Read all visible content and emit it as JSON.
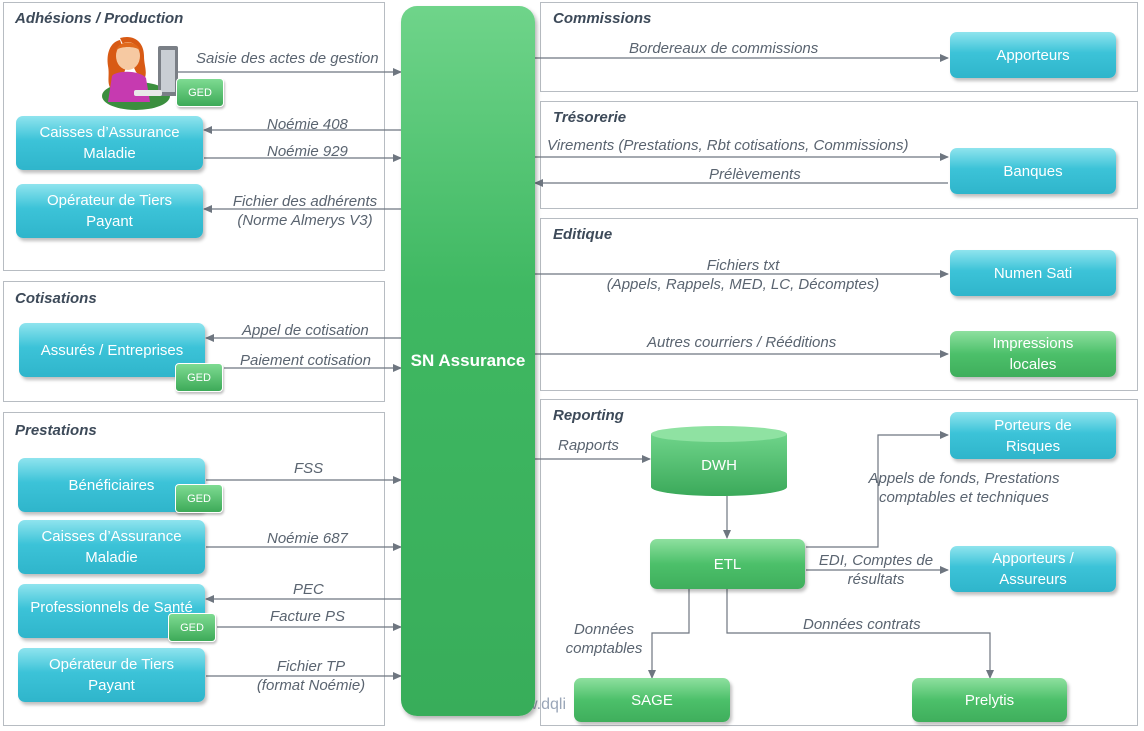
{
  "central": {
    "label": "SN Assurance"
  },
  "panels": {
    "adhesions": {
      "title": "Adhésions / Production"
    },
    "cotisations": {
      "title": "Cotisations"
    },
    "prestations": {
      "title": "Prestations"
    },
    "commissions": {
      "title": "Commissions"
    },
    "tresorerie": {
      "title": "Trésorerie"
    },
    "editique": {
      "title": "Editique"
    },
    "reporting": {
      "title": "Reporting"
    }
  },
  "boxes": {
    "caisses1": "Caisses d’Assurance Maladie",
    "tiers1": "Opérateur de Tiers Payant",
    "assures": "Assurés / Entreprises",
    "beneficiaires": "Bénéficiaires",
    "caisses2": "Caisses d’Assurance Maladie",
    "pros": "Professionnels de Santé",
    "tiers2": "Opérateur de Tiers Payant",
    "apporteurs": "Apporteurs",
    "banques": "Banques",
    "numen": "Numen Sati",
    "impressions": "Impressions locales",
    "porteurs": "Porteurs de Risques",
    "apporteurs_assureurs": "Apporteurs / Assureurs",
    "dwh": "DWH",
    "etl": "ETL",
    "sage": "SAGE",
    "prelytis": "Prelytis"
  },
  "ged": "GED",
  "labels": {
    "saisie": "Saisie des actes de gestion",
    "noemie408": "Noémie 408",
    "noemie929": "Noémie 929",
    "fichier_adherents_1": "Fichier des adhérents",
    "fichier_adherents_2": "(Norme Almerys V3)",
    "appel_cotisation": "Appel de cotisation",
    "paiement_cotisation": "Paiement cotisation",
    "fss": "FSS",
    "noemie687": "Noémie 687",
    "pec": "PEC",
    "facture_ps": "Facture PS",
    "fichier_tp_1": "Fichier TP",
    "fichier_tp_2": "(format Noémie)",
    "bordereaux": "Bordereaux de commissions",
    "virements": "Virements (Prestations, Rbt cotisations, Commissions)",
    "prelevements": "Prélèvements",
    "fichiers_txt_1": "Fichiers txt",
    "fichiers_txt_2": "(Appels, Rappels, MED, LC, Décomptes)",
    "autres_courriers": "Autres courriers / Rééditions",
    "rapports": "Rapports",
    "appels_fonds_1": "Appels de fonds, Prestations",
    "appels_fonds_2": "comptables et techniques",
    "edi_1": "EDI, Comptes de",
    "edi_2": "résultats",
    "donnees_comptables_1": "Données",
    "donnees_comptables_2": "comptables",
    "donnees_contrats": "Données contrats"
  },
  "watermark": "w.dqli",
  "colors": {
    "teal": "#3cc3d8",
    "green": "#4cc06a",
    "border": "#b7bcc2",
    "arrow": "#6e7680",
    "title": "#3d4a59"
  }
}
